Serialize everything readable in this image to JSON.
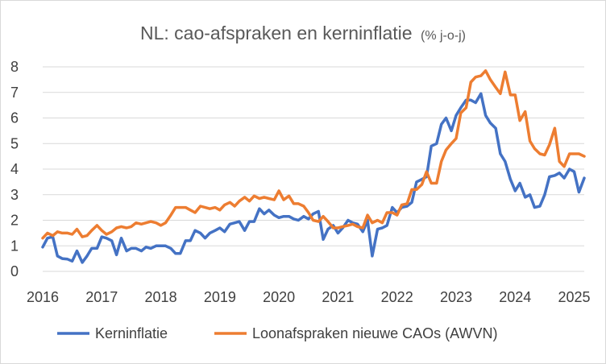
{
  "chart_data": {
    "type": "line",
    "title": "NL: cao-afspraken en kerninflatie",
    "subtitle": "(% j-o-j)",
    "xlabel": "",
    "ylabel": "",
    "ylim": [
      0,
      8
    ],
    "y_ticks": [
      "0",
      "1",
      "2",
      "3",
      "4",
      "5",
      "6",
      "7",
      "8"
    ],
    "x_ticks": [
      "2016",
      "2017",
      "2018",
      "2019",
      "2020",
      "2021",
      "2022",
      "2023",
      "2024",
      "2025"
    ],
    "x_range": [
      2016,
      2025.17
    ],
    "grid": "horizontal",
    "legend_position": "bottom",
    "series": [
      {
        "name": "Kerninflatie",
        "color": "#4472C4",
        "points": [
          [
            2016.0,
            0.95
          ],
          [
            2016.08,
            1.3
          ],
          [
            2016.17,
            1.35
          ],
          [
            2016.25,
            0.6
          ],
          [
            2016.33,
            0.5
          ],
          [
            2016.42,
            0.48
          ],
          [
            2016.5,
            0.4
          ],
          [
            2016.58,
            0.8
          ],
          [
            2016.67,
            0.35
          ],
          [
            2016.75,
            0.6
          ],
          [
            2016.83,
            0.9
          ],
          [
            2016.92,
            0.9
          ],
          [
            2017.0,
            1.35
          ],
          [
            2017.08,
            1.3
          ],
          [
            2017.17,
            1.2
          ],
          [
            2017.25,
            0.65
          ],
          [
            2017.33,
            1.3
          ],
          [
            2017.42,
            0.8
          ],
          [
            2017.5,
            0.9
          ],
          [
            2017.58,
            0.9
          ],
          [
            2017.67,
            0.8
          ],
          [
            2017.75,
            0.95
          ],
          [
            2017.83,
            0.9
          ],
          [
            2017.92,
            1.0
          ],
          [
            2018.0,
            1.0
          ],
          [
            2018.08,
            1.0
          ],
          [
            2018.17,
            0.9
          ],
          [
            2018.25,
            0.7
          ],
          [
            2018.33,
            0.7
          ],
          [
            2018.42,
            1.2
          ],
          [
            2018.5,
            1.2
          ],
          [
            2018.58,
            1.6
          ],
          [
            2018.67,
            1.5
          ],
          [
            2018.75,
            1.3
          ],
          [
            2018.83,
            1.5
          ],
          [
            2018.92,
            1.6
          ],
          [
            2019.0,
            1.7
          ],
          [
            2019.08,
            1.55
          ],
          [
            2019.17,
            1.85
          ],
          [
            2019.25,
            1.9
          ],
          [
            2019.33,
            1.95
          ],
          [
            2019.42,
            1.6
          ],
          [
            2019.5,
            1.95
          ],
          [
            2019.58,
            1.95
          ],
          [
            2019.67,
            2.45
          ],
          [
            2019.75,
            2.25
          ],
          [
            2019.83,
            2.4
          ],
          [
            2019.92,
            2.2
          ],
          [
            2020.0,
            2.1
          ],
          [
            2020.08,
            2.15
          ],
          [
            2020.17,
            2.15
          ],
          [
            2020.25,
            2.05
          ],
          [
            2020.33,
            2.0
          ],
          [
            2020.42,
            2.15
          ],
          [
            2020.5,
            2.05
          ],
          [
            2020.58,
            2.25
          ],
          [
            2020.67,
            2.35
          ],
          [
            2020.75,
            1.25
          ],
          [
            2020.83,
            1.65
          ],
          [
            2020.92,
            1.8
          ],
          [
            2021.0,
            1.5
          ],
          [
            2021.08,
            1.7
          ],
          [
            2021.17,
            2.0
          ],
          [
            2021.25,
            1.9
          ],
          [
            2021.33,
            1.85
          ],
          [
            2021.42,
            1.55
          ],
          [
            2021.5,
            2.0
          ],
          [
            2021.58,
            0.6
          ],
          [
            2021.67,
            1.65
          ],
          [
            2021.75,
            1.7
          ],
          [
            2021.83,
            1.8
          ],
          [
            2021.92,
            2.5
          ],
          [
            2022.0,
            2.3
          ],
          [
            2022.08,
            2.5
          ],
          [
            2022.17,
            2.55
          ],
          [
            2022.25,
            2.7
          ],
          [
            2022.33,
            3.5
          ],
          [
            2022.42,
            3.6
          ],
          [
            2022.5,
            3.7
          ],
          [
            2022.58,
            4.9
          ],
          [
            2022.67,
            5.0
          ],
          [
            2022.75,
            5.75
          ],
          [
            2022.83,
            6.0
          ],
          [
            2022.92,
            5.5
          ],
          [
            2023.0,
            6.1
          ],
          [
            2023.08,
            6.4
          ],
          [
            2023.17,
            6.7
          ],
          [
            2023.25,
            6.7
          ],
          [
            2023.33,
            6.6
          ],
          [
            2023.42,
            6.95
          ],
          [
            2023.5,
            6.1
          ],
          [
            2023.58,
            5.8
          ],
          [
            2023.67,
            5.6
          ],
          [
            2023.75,
            4.6
          ],
          [
            2023.83,
            4.3
          ],
          [
            2023.92,
            3.6
          ],
          [
            2024.0,
            3.15
          ],
          [
            2024.08,
            3.45
          ],
          [
            2024.17,
            2.9
          ],
          [
            2024.25,
            3.0
          ],
          [
            2024.33,
            2.5
          ],
          [
            2024.42,
            2.55
          ],
          [
            2024.5,
            3.0
          ],
          [
            2024.58,
            3.7
          ],
          [
            2024.67,
            3.75
          ],
          [
            2024.75,
            3.85
          ],
          [
            2024.83,
            3.65
          ],
          [
            2024.92,
            4.0
          ],
          [
            2025.0,
            3.9
          ],
          [
            2025.08,
            3.1
          ],
          [
            2025.17,
            3.65
          ]
        ]
      },
      {
        "name": "Loonafspraken nieuwe CAOs (AWVN)",
        "color": "#ED7D31",
        "points": [
          [
            2016.0,
            1.3
          ],
          [
            2016.08,
            1.5
          ],
          [
            2016.17,
            1.4
          ],
          [
            2016.25,
            1.55
          ],
          [
            2016.33,
            1.5
          ],
          [
            2016.42,
            1.5
          ],
          [
            2016.5,
            1.45
          ],
          [
            2016.58,
            1.65
          ],
          [
            2016.67,
            1.35
          ],
          [
            2016.75,
            1.4
          ],
          [
            2016.83,
            1.6
          ],
          [
            2016.92,
            1.8
          ],
          [
            2017.0,
            1.6
          ],
          [
            2017.08,
            1.45
          ],
          [
            2017.17,
            1.55
          ],
          [
            2017.25,
            1.7
          ],
          [
            2017.33,
            1.75
          ],
          [
            2017.42,
            1.7
          ],
          [
            2017.5,
            1.75
          ],
          [
            2017.58,
            1.9
          ],
          [
            2017.67,
            1.85
          ],
          [
            2017.75,
            1.9
          ],
          [
            2017.83,
            1.95
          ],
          [
            2017.92,
            1.9
          ],
          [
            2018.0,
            1.8
          ],
          [
            2018.08,
            1.9
          ],
          [
            2018.17,
            2.2
          ],
          [
            2018.25,
            2.5
          ],
          [
            2018.33,
            2.5
          ],
          [
            2018.42,
            2.5
          ],
          [
            2018.5,
            2.4
          ],
          [
            2018.58,
            2.3
          ],
          [
            2018.67,
            2.55
          ],
          [
            2018.75,
            2.5
          ],
          [
            2018.83,
            2.45
          ],
          [
            2018.92,
            2.5
          ],
          [
            2019.0,
            2.4
          ],
          [
            2019.08,
            2.6
          ],
          [
            2019.17,
            2.7
          ],
          [
            2019.25,
            2.55
          ],
          [
            2019.33,
            2.75
          ],
          [
            2019.42,
            2.9
          ],
          [
            2019.5,
            2.75
          ],
          [
            2019.58,
            2.95
          ],
          [
            2019.67,
            2.85
          ],
          [
            2019.75,
            2.9
          ],
          [
            2019.83,
            2.85
          ],
          [
            2019.92,
            2.8
          ],
          [
            2020.0,
            3.15
          ],
          [
            2020.08,
            2.8
          ],
          [
            2020.17,
            2.95
          ],
          [
            2020.25,
            2.65
          ],
          [
            2020.33,
            2.65
          ],
          [
            2020.42,
            2.55
          ],
          [
            2020.5,
            2.3
          ],
          [
            2020.58,
            2.0
          ],
          [
            2020.67,
            1.95
          ],
          [
            2020.75,
            2.15
          ],
          [
            2020.83,
            1.95
          ],
          [
            2020.92,
            1.7
          ],
          [
            2021.0,
            1.7
          ],
          [
            2021.08,
            1.75
          ],
          [
            2021.17,
            1.8
          ],
          [
            2021.25,
            1.85
          ],
          [
            2021.33,
            1.75
          ],
          [
            2021.42,
            1.7
          ],
          [
            2021.5,
            2.2
          ],
          [
            2021.58,
            1.9
          ],
          [
            2021.67,
            2.0
          ],
          [
            2021.75,
            1.9
          ],
          [
            2021.83,
            2.3
          ],
          [
            2021.92,
            2.3
          ],
          [
            2022.0,
            2.2
          ],
          [
            2022.08,
            2.6
          ],
          [
            2022.17,
            2.65
          ],
          [
            2022.25,
            3.2
          ],
          [
            2022.33,
            3.2
          ],
          [
            2022.42,
            3.4
          ],
          [
            2022.5,
            3.9
          ],
          [
            2022.58,
            3.45
          ],
          [
            2022.67,
            3.45
          ],
          [
            2022.75,
            4.3
          ],
          [
            2022.83,
            4.75
          ],
          [
            2022.92,
            5.0
          ],
          [
            2023.0,
            5.2
          ],
          [
            2023.08,
            6.2
          ],
          [
            2023.17,
            6.4
          ],
          [
            2023.25,
            7.4
          ],
          [
            2023.33,
            7.6
          ],
          [
            2023.42,
            7.65
          ],
          [
            2023.5,
            7.85
          ],
          [
            2023.58,
            7.5
          ],
          [
            2023.67,
            7.2
          ],
          [
            2023.75,
            6.95
          ],
          [
            2023.83,
            7.8
          ],
          [
            2023.92,
            6.9
          ],
          [
            2024.0,
            6.9
          ],
          [
            2024.08,
            5.9
          ],
          [
            2024.17,
            6.25
          ],
          [
            2024.25,
            5.1
          ],
          [
            2024.33,
            4.8
          ],
          [
            2024.42,
            4.6
          ],
          [
            2024.5,
            4.55
          ],
          [
            2024.58,
            4.95
          ],
          [
            2024.67,
            5.6
          ],
          [
            2024.75,
            4.3
          ],
          [
            2024.83,
            4.1
          ],
          [
            2024.92,
            4.6
          ],
          [
            2025.0,
            4.6
          ],
          [
            2025.08,
            4.6
          ],
          [
            2025.17,
            4.5
          ]
        ]
      }
    ]
  }
}
